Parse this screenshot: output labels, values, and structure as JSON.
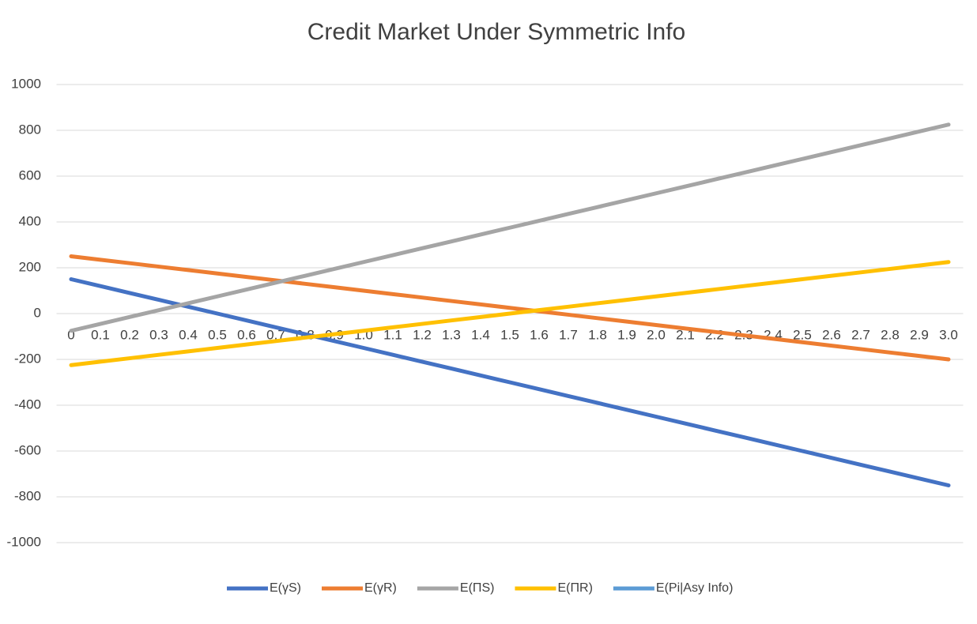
{
  "chart_data": {
    "type": "line",
    "title": "Credit Market Under Symmetric Info",
    "categories": [
      "0",
      "0.1",
      "0.2",
      "0.3",
      "0.4",
      "0.5",
      "0.6",
      "0.7",
      "0.8",
      "0.9",
      "1.0",
      "1.1",
      "1.2",
      "1.3",
      "1.4",
      "1.5",
      "1.6",
      "1.7",
      "1.8",
      "1.9",
      "2.0",
      "2.1",
      "2.2",
      "2.3",
      "2.4",
      "2.5",
      "2.6",
      "2.7",
      "2.8",
      "2.9",
      "3.0"
    ],
    "series": [
      {
        "name": "E(γS)",
        "color": "#4472c4",
        "values": [
          150,
          120,
          90,
          60,
          30,
          0,
          -30,
          -60,
          -90,
          -120,
          -150,
          -180,
          -210,
          -240,
          -270,
          -300,
          -330,
          -360,
          -390,
          -420,
          -450,
          -480,
          -510,
          -540,
          -570,
          -600,
          -630,
          -660,
          -690,
          -720,
          -750
        ]
      },
      {
        "name": "E(γR)",
        "color": "#ed7d31",
        "values": [
          250,
          235,
          220,
          205,
          190,
          175,
          160,
          145,
          130,
          115,
          100,
          85,
          70,
          55,
          40,
          25,
          10,
          -5,
          -20,
          -35,
          -50,
          -65,
          -80,
          -95,
          -110,
          -125,
          -140,
          -155,
          -170,
          -185,
          -200
        ]
      },
      {
        "name": "E(ΠS)",
        "color": "#a5a5a5",
        "values": [
          -75,
          -45,
          -15,
          15,
          45,
          75,
          105,
          135,
          165,
          195,
          225,
          255,
          285,
          315,
          345,
          375,
          405,
          435,
          465,
          495,
          525,
          555,
          585,
          615,
          645,
          675,
          705,
          735,
          765,
          795,
          825
        ]
      },
      {
        "name": "E(ΠR)",
        "color": "#ffc000",
        "values": [
          -225,
          -210,
          -195,
          -180,
          -165,
          -150,
          -135,
          -120,
          -105,
          -90,
          -75,
          -60,
          -45,
          -30,
          -15,
          0,
          15,
          30,
          45,
          60,
          75,
          90,
          105,
          120,
          135,
          150,
          165,
          180,
          195,
          210,
          225
        ]
      },
      {
        "name": "E(Pi|Asy Info)",
        "color": "#5b9bd5",
        "values": [
          null,
          null,
          null,
          null,
          null,
          null,
          null,
          null,
          null,
          null,
          null,
          null,
          null,
          null,
          null,
          null,
          null,
          null,
          null,
          null,
          null,
          null,
          null,
          null,
          null,
          null,
          null,
          null,
          null,
          null,
          null
        ]
      }
    ],
    "ylim": [
      -1000,
      1000
    ],
    "yticks": [
      -1000,
      -800,
      -600,
      -400,
      -200,
      0,
      200,
      400,
      600,
      800,
      1000
    ],
    "grid": true,
    "legend": "bottom"
  }
}
